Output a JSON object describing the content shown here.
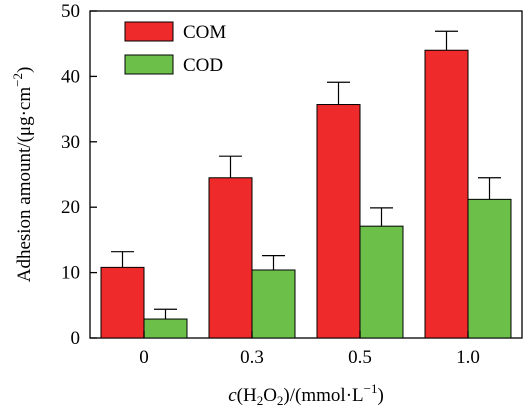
{
  "chart_data": {
    "type": "bar",
    "categories": [
      "0",
      "0.3",
      "0.5",
      "1.0"
    ],
    "series": [
      {
        "name": "COM",
        "color": "#ee2a2a",
        "values": [
          10.8,
          24.5,
          35.7,
          44.0
        ],
        "errors": [
          2.4,
          3.3,
          3.4,
          2.9
        ]
      },
      {
        "name": "COD",
        "color": "#6cc04a",
        "values": [
          2.9,
          10.4,
          17.1,
          21.2
        ],
        "errors": [
          1.5,
          2.2,
          2.8,
          3.3
        ]
      }
    ],
    "ylim": [
      0,
      50
    ],
    "yticks": [
      0,
      10,
      20,
      30,
      40,
      50
    ],
    "xlabel": {
      "italic": "c",
      "rest": "(H",
      "sub1": "2",
      "mid": "O",
      "sub2": "2",
      "end": ")/(mmol·L",
      "sup": "−1",
      "close": ")"
    },
    "ylabel": {
      "main": "Adhesion amount/(μg·cm",
      "sup": "−2",
      "close": ")"
    },
    "legend_position": "top-left",
    "grid": false
  }
}
